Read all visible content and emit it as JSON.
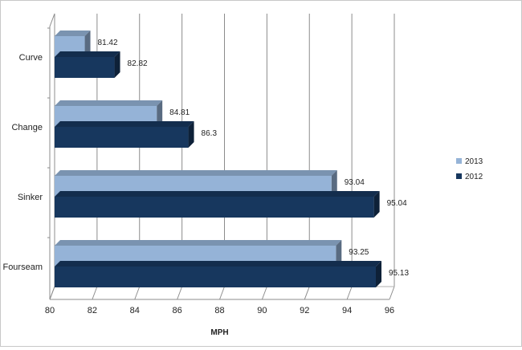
{
  "chart_data": {
    "type": "bar",
    "orientation": "horizontal",
    "style": "3d-clustered",
    "categories": [
      "Curve",
      "Change",
      "Sinker",
      "Fourseam"
    ],
    "series": [
      {
        "name": "2013",
        "color": "#95b3d7",
        "values": [
          81.42,
          84.81,
          93.04,
          93.25
        ],
        "labels": [
          "81.42",
          "84.81",
          "93.04",
          "93.25"
        ]
      },
      {
        "name": "2012",
        "color": "#17375e",
        "values": [
          82.82,
          86.3,
          95.04,
          95.13
        ],
        "labels": [
          "82.82",
          "86.3",
          "95.04",
          "95.13"
        ]
      }
    ],
    "xlabel": "MPH",
    "xlim": [
      80,
      96
    ],
    "xticks": [
      "80",
      "82",
      "84",
      "86",
      "88",
      "90",
      "92",
      "94",
      "96"
    ],
    "grid": true,
    "legend_position": "right"
  }
}
